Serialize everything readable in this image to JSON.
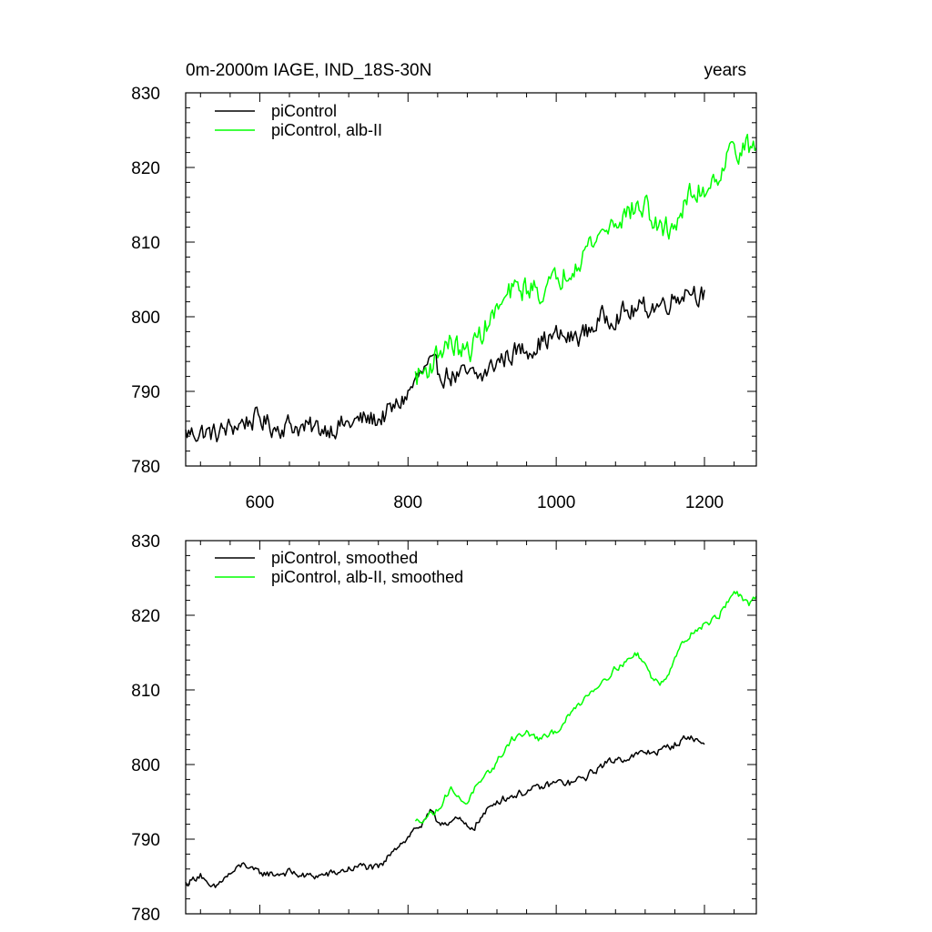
{
  "chart_data": [
    {
      "type": "line",
      "title_left": "0m-2000m IAGE, IND_18S-30N",
      "title_right": "years",
      "xlim": [
        500,
        1270
      ],
      "ylim": [
        780,
        830
      ],
      "x_ticks": [
        600,
        800,
        1000,
        1200
      ],
      "y_ticks": [
        780,
        790,
        800,
        810,
        820,
        830
      ],
      "x_tick_labels": [
        "600",
        "800",
        "1000",
        "1200"
      ],
      "y_tick_labels": [
        "780",
        "790",
        "800",
        "810",
        "820",
        "830"
      ],
      "show_x_tick_labels": true,
      "legend_position": "top-left",
      "series": [
        {
          "name": "piControl",
          "color": "#000000",
          "x": [
            500,
            520,
            540,
            560,
            580,
            600,
            620,
            640,
            660,
            680,
            700,
            720,
            740,
            760,
            780,
            800,
            810,
            820,
            830,
            840,
            860,
            880,
            900,
            920,
            940,
            960,
            980,
            1000,
            1020,
            1040,
            1060,
            1080,
            1100,
            1120,
            1140,
            1160,
            1180,
            1200
          ],
          "y": [
            784.3,
            784.6,
            784.2,
            785.1,
            786.0,
            786.3,
            785.2,
            785.6,
            785.0,
            785.0,
            785.3,
            785.6,
            786.2,
            786.3,
            787.5,
            789.7,
            791.3,
            792.5,
            793.3,
            792.6,
            792.1,
            792.0,
            791.9,
            794.0,
            795.1,
            795.7,
            796.7,
            797.4,
            797.0,
            797.9,
            799.6,
            800.3,
            800.6,
            801.2,
            801.6,
            802.6,
            803.9,
            802.8
          ],
          "noise": 1.3
        },
        {
          "name": "piControl, alb-II",
          "color": "#00ff00",
          "x": [
            810,
            820,
            830,
            840,
            850,
            860,
            870,
            880,
            890,
            900,
            920,
            940,
            960,
            980,
            1000,
            1020,
            1040,
            1060,
            1080,
            1100,
            1120,
            1140,
            1160,
            1180,
            1200,
            1220,
            1240,
            1260,
            1270
          ],
          "y": [
            792.0,
            792.4,
            793.5,
            795.0,
            796.3,
            796.5,
            795.4,
            795.1,
            796.4,
            798.1,
            800.7,
            803.3,
            803.9,
            803.5,
            804.6,
            807.0,
            809.1,
            811.1,
            812.9,
            814.2,
            814.8,
            811.3,
            812.5,
            816.0,
            817.2,
            819.5,
            822.8,
            822.4,
            822.4
          ],
          "noise": 1.5
        }
      ]
    },
    {
      "type": "line",
      "xlim": [
        500,
        1270
      ],
      "ylim": [
        780,
        830
      ],
      "x_ticks": [
        600,
        800,
        1000,
        1200
      ],
      "y_ticks": [
        780,
        790,
        800,
        810,
        820,
        830
      ],
      "y_tick_labels": [
        "780",
        "790",
        "800",
        "810",
        "820",
        "830"
      ],
      "show_x_tick_labels": false,
      "legend_position": "top-left",
      "series": [
        {
          "name": "piControl, smoothed",
          "color": "#000000",
          "x": [
            500,
            510,
            520,
            530,
            540,
            550,
            560,
            570,
            580,
            590,
            600,
            620,
            640,
            660,
            680,
            700,
            720,
            740,
            760,
            770,
            780,
            800,
            810,
            820,
            830,
            840,
            860,
            870,
            880,
            890,
            900,
            920,
            940,
            960,
            980,
            1000,
            1020,
            1040,
            1060,
            1080,
            1100,
            1120,
            1140,
            1160,
            1180,
            1190,
            1200
          ],
          "y": [
            784.0,
            784.6,
            785.4,
            783.5,
            783.4,
            784.6,
            785.3,
            786.0,
            786.8,
            785.7,
            785.5,
            785.3,
            785.6,
            785.0,
            785.1,
            785.4,
            786.0,
            786.4,
            786.0,
            787.0,
            788.8,
            790.2,
            791.5,
            792.0,
            793.5,
            792.3,
            792.4,
            792.5,
            791.5,
            791.8,
            793.0,
            795.2,
            795.8,
            796.4,
            796.9,
            797.6,
            797.5,
            798.3,
            799.8,
            800.7,
            801.0,
            801.6,
            801.8,
            802.7,
            803.8,
            803.2,
            802.7
          ],
          "noise": 0.45
        },
        {
          "name": "piControl, alb-II, smoothed",
          "color": "#00ff00",
          "x": [
            810,
            820,
            830,
            840,
            850,
            860,
            870,
            880,
            890,
            900,
            910,
            920,
            940,
            960,
            980,
            1000,
            1020,
            1040,
            1060,
            1080,
            1100,
            1110,
            1120,
            1130,
            1140,
            1150,
            1160,
            1180,
            1200,
            1220,
            1240,
            1260,
            1270
          ],
          "y": [
            792.2,
            792.8,
            793.4,
            793.8,
            795.8,
            796.8,
            795.2,
            795.0,
            796.8,
            797.5,
            799.0,
            800.3,
            803.5,
            804.2,
            803.3,
            804.5,
            806.8,
            809.2,
            811.0,
            812.9,
            814.2,
            814.9,
            813.4,
            811.4,
            811.0,
            812.0,
            814.5,
            817.5,
            818.7,
            820.0,
            823.3,
            821.2,
            822.5
          ],
          "noise": 0.4
        }
      ]
    }
  ]
}
